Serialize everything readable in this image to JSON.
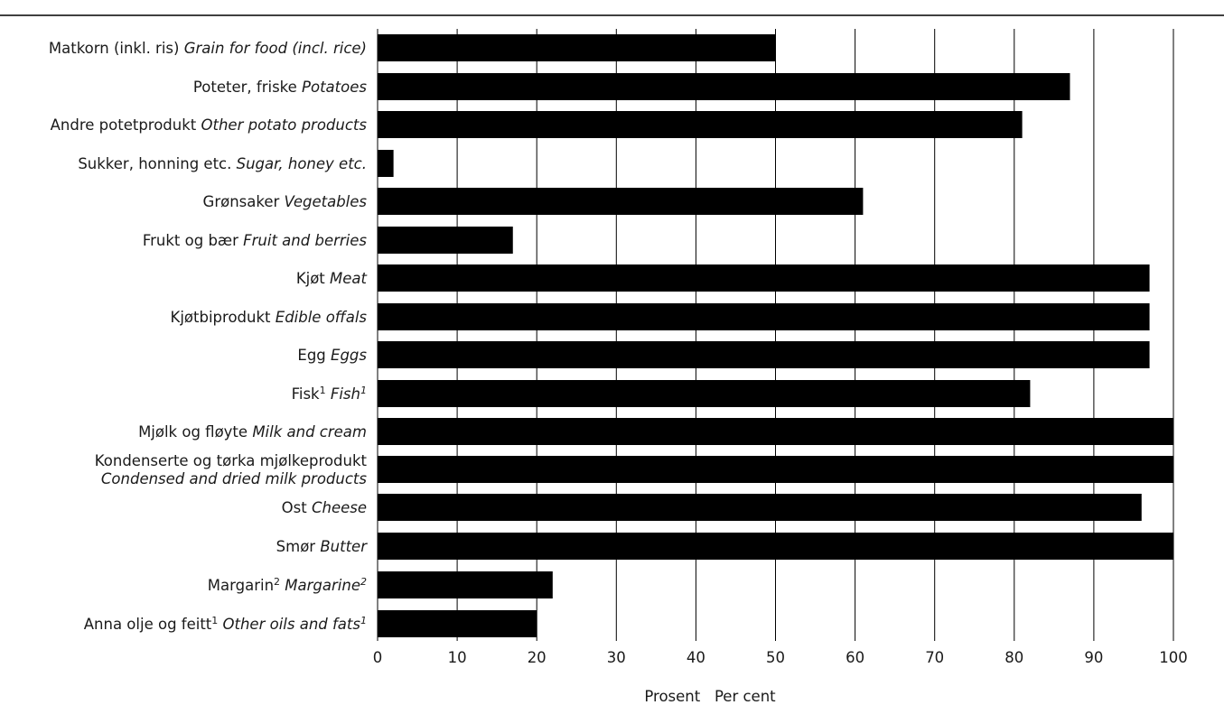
{
  "chart_data": {
    "type": "bar",
    "orientation": "horizontal",
    "categories": [
      {
        "main": "Matkorn (inkl. ris)",
        "main_sup": "",
        "en": "Grain for food (incl. rice)",
        "en_sup": ""
      },
      {
        "main": "Poteter, friske",
        "main_sup": "",
        "en": "Potatoes",
        "en_sup": ""
      },
      {
        "main": "Andre potetprodukt",
        "main_sup": "",
        "en": "Other potato products",
        "en_sup": ""
      },
      {
        "main": "Sukker, honning etc.",
        "main_sup": "",
        "en": "Sugar, honey etc.",
        "en_sup": ""
      },
      {
        "main": "Grønsaker",
        "main_sup": "",
        "en": "Vegetables",
        "en_sup": ""
      },
      {
        "main": "Frukt og bær",
        "main_sup": "",
        "en": "Fruit and berries",
        "en_sup": ""
      },
      {
        "main": "Kjøt",
        "main_sup": "",
        "en": "Meat",
        "en_sup": ""
      },
      {
        "main": "Kjøtbiprodukt",
        "main_sup": "",
        "en": "Edible offals",
        "en_sup": ""
      },
      {
        "main": "Egg",
        "main_sup": "",
        "en": "Eggs",
        "en_sup": ""
      },
      {
        "main": "Fisk",
        "main_sup": "1",
        "en": "Fish",
        "en_sup": "1"
      },
      {
        "main": "Mjølk og fløyte",
        "main_sup": "",
        "en": "Milk and cream",
        "en_sup": ""
      },
      {
        "main": "Kondenserte og tørka mjølkeprodukt",
        "main_sup": "",
        "en": "Condensed and dried milk products",
        "en_sup": "",
        "two_lines": true
      },
      {
        "main": "Ost",
        "main_sup": "",
        "en": "Cheese",
        "en_sup": ""
      },
      {
        "main": "Smør",
        "main_sup": "",
        "en": "Butter",
        "en_sup": ""
      },
      {
        "main": "Margarin",
        "main_sup": "2",
        "en": "Margarine",
        "en_sup": "2"
      },
      {
        "main": "Anna olje og feitt",
        "main_sup": "1",
        "en": "Other oils and fats",
        "en_sup": "1"
      }
    ],
    "values": [
      50,
      87,
      81,
      2,
      61,
      17,
      97,
      97,
      97,
      82,
      100,
      100,
      96,
      100,
      22,
      20
    ],
    "xlim": [
      0,
      100
    ],
    "xticks": [
      "0",
      "10",
      "20",
      "30",
      "40",
      "50",
      "60",
      "70",
      "80",
      "90",
      "100"
    ],
    "xlabel": "Prosent   Per cent",
    "grid": true,
    "bar_color": "#000000"
  }
}
